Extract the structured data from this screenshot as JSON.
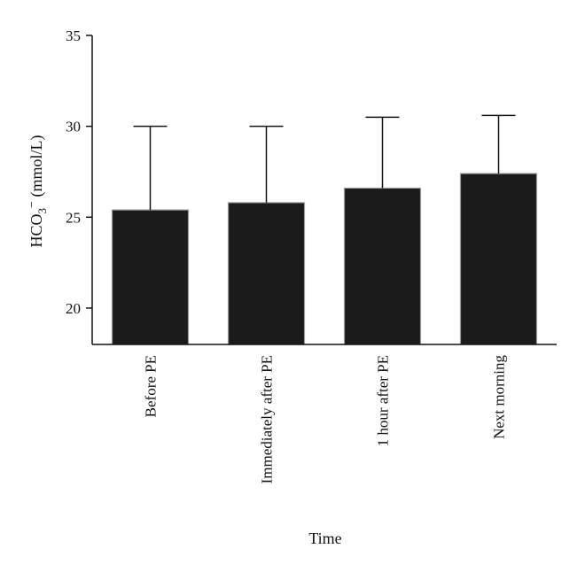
{
  "chart_data": {
    "type": "bar",
    "title": "",
    "xlabel": "Time",
    "ylabel": {
      "main": "HCO",
      "subscript": "3",
      "superscript": "−",
      "unit": " (mmol/L)"
    },
    "ylim": [
      18,
      35
    ],
    "yticks": [
      "20",
      "25",
      "30",
      "35"
    ],
    "categories": [
      "Before PE",
      "Immediately after PE",
      "1 hour after PE",
      "Next morning"
    ],
    "values": [
      25.4,
      25.8,
      26.6,
      27.4
    ],
    "errors": [
      4.6,
      4.2,
      3.9,
      3.2
    ],
    "grid": false,
    "legend": "none",
    "colors": {
      "bar": "#1b1b1b",
      "bar_edge": "#9a9a9a",
      "axis": "#111111"
    }
  }
}
